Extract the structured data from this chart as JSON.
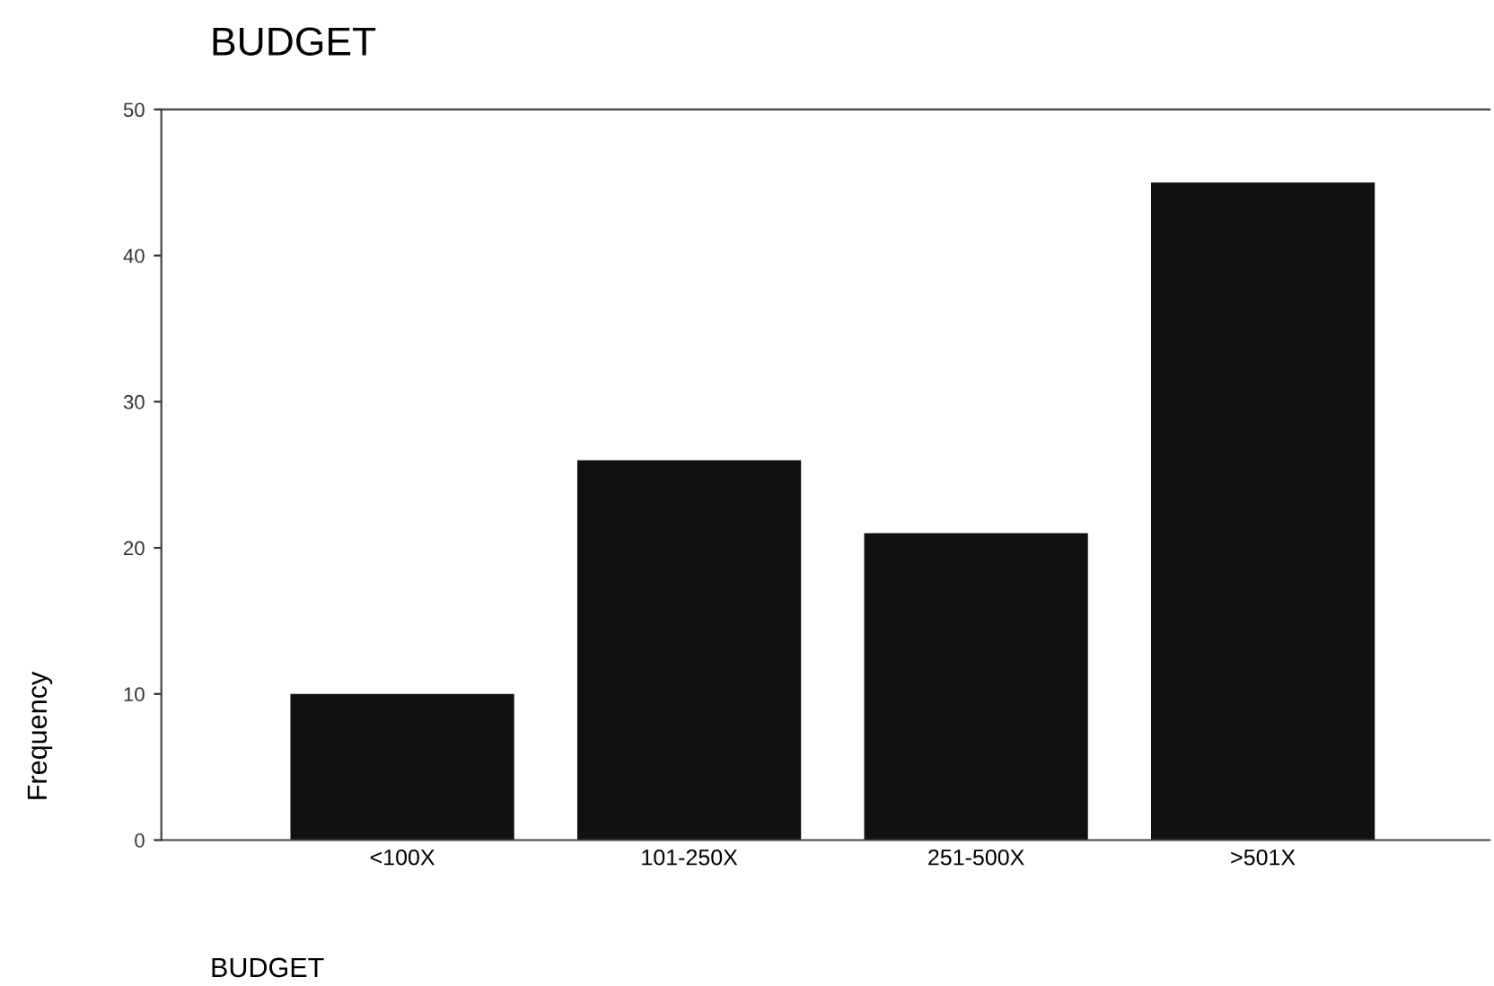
{
  "chart_data": {
    "type": "bar",
    "title": "BUDGET",
    "xlabel": "BUDGET",
    "ylabel": "Frequency",
    "categories": [
      "<100X",
      "101-250X",
      "251-500X",
      ">501X"
    ],
    "values": [
      10,
      26,
      21,
      45
    ],
    "color": "#111111",
    "ylim": [
      0,
      50
    ],
    "yticks": [
      0,
      10,
      20,
      30,
      40,
      50
    ],
    "grid": false
  }
}
